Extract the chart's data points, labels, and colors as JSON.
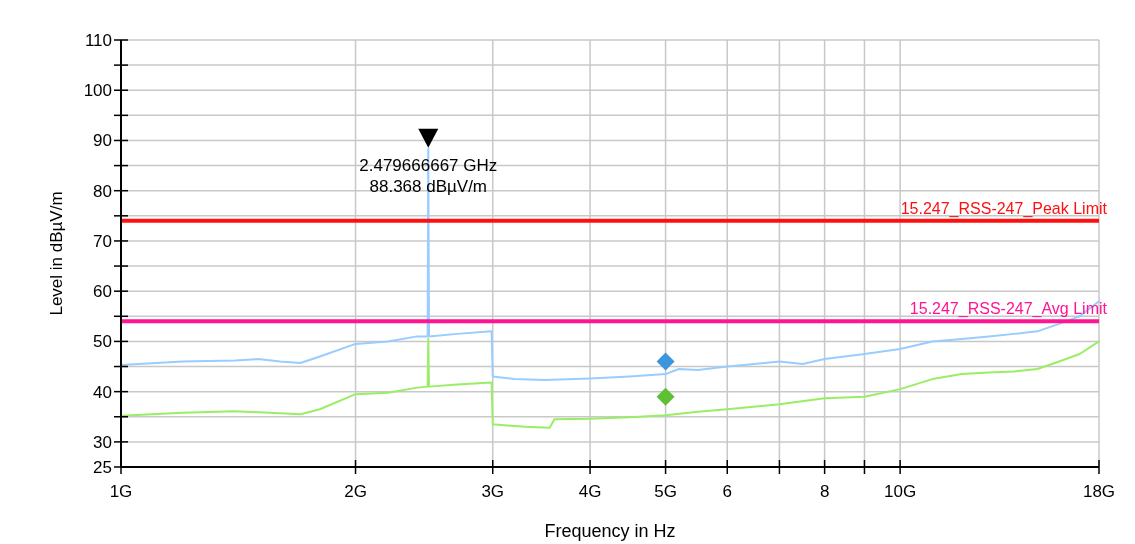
{
  "chart_data": {
    "type": "line",
    "xlabel": "Frequency in Hz",
    "ylabel": "Level in dBµV/m",
    "log": "x",
    "xlim": [
      1,
      18
    ],
    "ylim": [
      25,
      110
    ],
    "grid": true,
    "line_style": "solid",
    "xticks": [
      {
        "value": 1,
        "label": "1G"
      },
      {
        "value": 2,
        "label": "2G"
      },
      {
        "value": 3,
        "label": "3G"
      },
      {
        "value": 4,
        "label": "4G"
      },
      {
        "value": 5,
        "label": "5G"
      },
      6,
      {
        "value": 7,
        "label": null
      },
      8,
      {
        "value": 9,
        "label": null
      },
      {
        "value": 10,
        "label": "10G"
      },
      {
        "value": 18,
        "label": "18G"
      }
    ],
    "yticks": [
      25,
      30,
      {
        "value": 35,
        "label": null
      },
      40,
      {
        "value": 45,
        "label": null
      },
      50,
      {
        "value": 55,
        "label": null
      },
      60,
      {
        "value": 65,
        "label": null
      },
      70,
      {
        "value": 75,
        "label": null
      },
      80,
      {
        "value": 85,
        "label": null
      },
      90,
      {
        "value": 95,
        "label": null
      },
      100,
      {
        "value": 105,
        "label": null
      },
      110
    ],
    "series": [
      {
        "color": "#99ccff",
        "x": [
          1,
          1.2,
          1.4,
          1.5,
          1.6,
          1.7,
          1.8,
          2,
          2.2,
          2.4,
          2.475,
          2.479666667,
          2.485,
          2.7,
          2.99,
          3.0,
          3.2,
          3.5,
          4,
          4.5,
          5,
          5.2,
          5.5,
          6,
          6.5,
          7,
          7.5,
          8,
          9,
          10,
          11,
          12,
          13,
          14,
          15,
          16,
          17,
          18
        ],
        "values": [
          45.3,
          46,
          46.2,
          46.5,
          46,
          45.7,
          47,
          49.5,
          50,
          51,
          51,
          88.368,
          51,
          51.5,
          52,
          43,
          42.5,
          42.3,
          42.6,
          43,
          43.5,
          44.5,
          44.3,
          45,
          45.5,
          46,
          45.5,
          46.5,
          47.5,
          48.5,
          50,
          50.5,
          51,
          51.5,
          52,
          53.5,
          55,
          58
        ]
      },
      {
        "color": "#99ee66",
        "x": [
          1,
          1.2,
          1.4,
          1.6,
          1.7,
          1.8,
          2,
          2.2,
          2.4,
          2.475,
          2.479666667,
          2.485,
          2.7,
          2.99,
          3.0,
          3.3,
          3.55,
          3.6,
          4,
          4.5,
          5,
          5.5,
          6,
          7,
          8,
          9,
          10,
          11,
          12,
          13,
          14,
          15,
          16,
          17,
          18
        ],
        "values": [
          35.2,
          35.8,
          36.1,
          35.7,
          35.5,
          36.5,
          39.5,
          39.8,
          40.8,
          41,
          50.5,
          41,
          41.4,
          41.8,
          33.5,
          33,
          32.8,
          34.5,
          34.6,
          34.9,
          35.3,
          36,
          36.5,
          37.5,
          38.7,
          39,
          40.5,
          42.5,
          43.5,
          43.8,
          44,
          44.5,
          46,
          47.5,
          50
        ]
      },
      {
        "type": "scatter",
        "marker": "diamond",
        "color": "#3d95dc",
        "x": [
          5
        ],
        "values": [
          46
        ]
      },
      {
        "type": "scatter",
        "marker": "diamond",
        "color": "#5fbf35",
        "x": [
          5
        ],
        "values": [
          39
        ]
      }
    ],
    "ref_lines": [
      {
        "axis": "y",
        "value": 74,
        "label": "15.247_RSS-247_Peak Limit",
        "color": "#ff1010"
      },
      {
        "axis": "y",
        "value": 54,
        "label": "15.247_RSS-247_Avg Limit",
        "color": "#ff1493"
      }
    ],
    "annotations": [
      {
        "text": "2.479666667 GHz\n88.368 dBµV/m",
        "x": 2.479666667,
        "y": 88.368
      }
    ]
  }
}
